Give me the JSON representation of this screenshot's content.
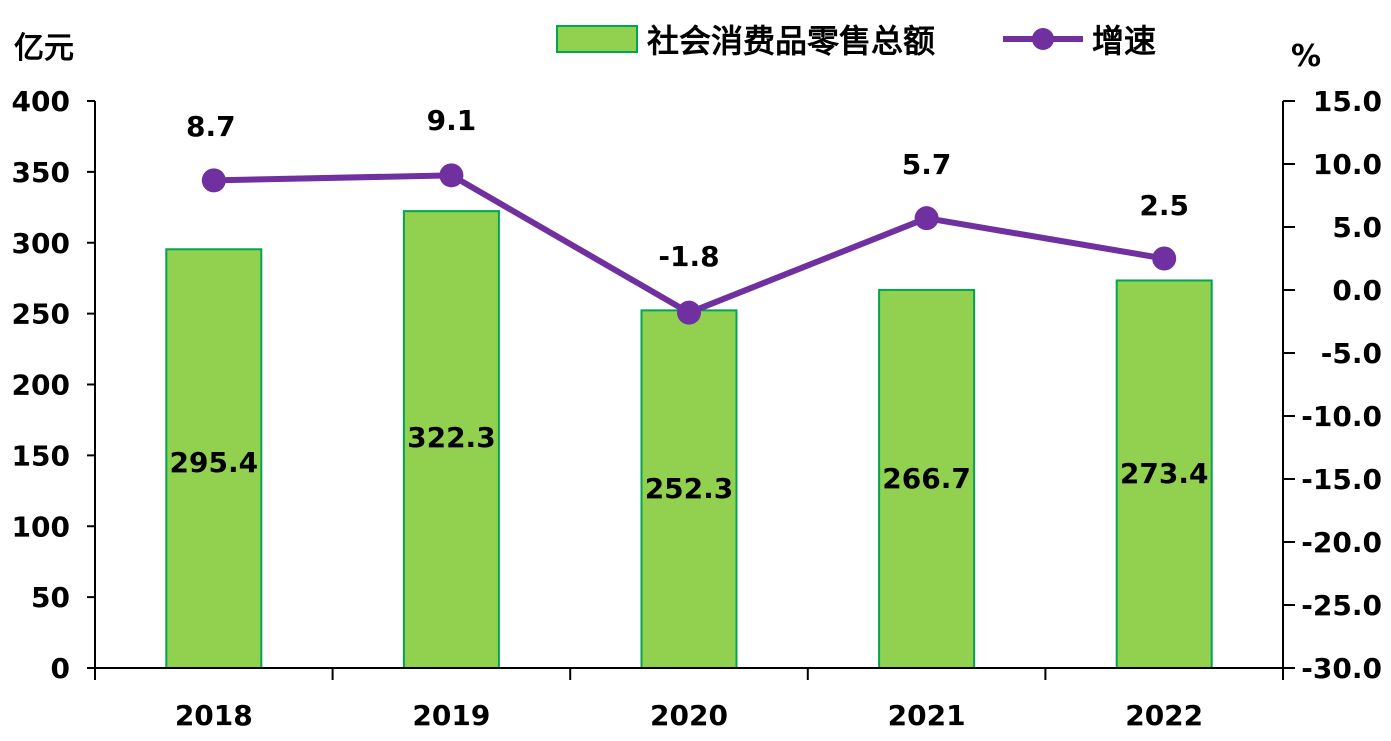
{
  "chart_data": {
    "type": "bar",
    "categories": [
      "2018",
      "2019",
      "2020",
      "2021",
      "2022"
    ],
    "series": [
      {
        "name": "社会消费品零售总额",
        "type": "bar",
        "axis": "left",
        "values": [
          295.4,
          322.3,
          252.3,
          266.7,
          273.4
        ],
        "labels": [
          "295.4",
          "322.3",
          "252.3",
          "266.7",
          "273.4"
        ],
        "color": "#92D050",
        "border_color": "#00A650"
      },
      {
        "name": "增速",
        "type": "line",
        "axis": "right",
        "values": [
          8.7,
          9.1,
          -1.8,
          5.7,
          2.5
        ],
        "labels": [
          "8.7",
          "9.1",
          "-1.8",
          "5.7",
          "2.5"
        ],
        "color": "#7030A0"
      }
    ],
    "left_axis": {
      "unit": "亿元",
      "ylim": [
        0,
        400
      ],
      "ticks": [
        "0",
        "50",
        "100",
        "150",
        "200",
        "250",
        "300",
        "350",
        "400"
      ]
    },
    "right_axis": {
      "unit": "%",
      "ylim": [
        -30,
        15
      ],
      "ticks": [
        "-30.0",
        "-25.0",
        "-20.0",
        "-15.0",
        "-10.0",
        "-5.0",
        "0.0",
        "5.0",
        "10.0",
        "15.0"
      ]
    },
    "legend_position": "top",
    "grid": false
  }
}
